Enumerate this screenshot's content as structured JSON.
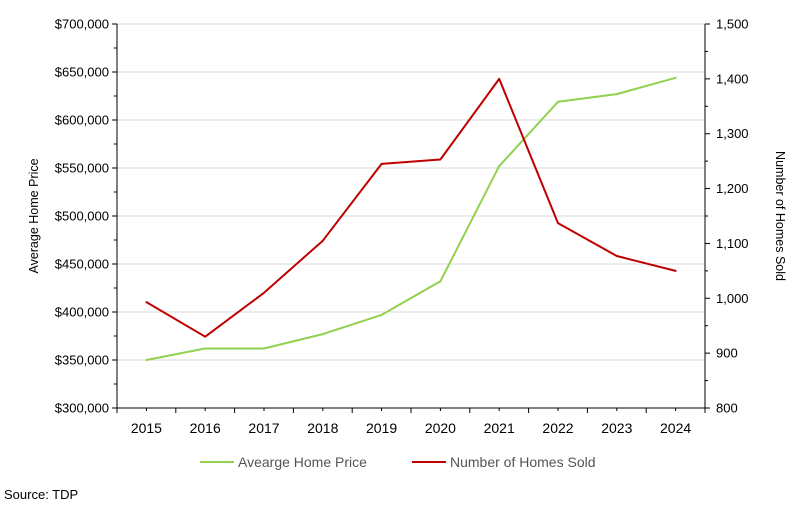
{
  "chart_data": {
    "type": "line",
    "categories": [
      "2015",
      "2016",
      "2017",
      "2018",
      "2019",
      "2020",
      "2021",
      "2022",
      "2023",
      "2024"
    ],
    "series": [
      {
        "name": "Avearge Home Price",
        "axis": "left",
        "color": "#92d050",
        "values": [
          350000,
          362000,
          362000,
          377000,
          397000,
          432000,
          552000,
          619000,
          627000,
          644000
        ]
      },
      {
        "name": "Number of Homes Sold",
        "axis": "right",
        "color": "#c00000",
        "values": [
          993,
          930,
          1010,
          1105,
          1245,
          1253,
          1400,
          1137,
          1077,
          1050
        ]
      }
    ],
    "ylabel": "Average Home Price",
    "y2label": "Number of Homes Sold",
    "ylim": [
      300000,
      700000
    ],
    "y2lim": [
      800,
      1500
    ],
    "yticks": [
      "$300,000",
      "$350,000",
      "$400,000",
      "$450,000",
      "$500,000",
      "$550,000",
      "$600,000",
      "$650,000",
      "$700,000"
    ],
    "y2ticks": [
      "800",
      "900",
      "1,000",
      "1,100",
      "1,200",
      "1,300",
      "1,400",
      "1,500"
    ],
    "grid": true,
    "legend_position": "bottom",
    "source": "Source: TDP"
  }
}
